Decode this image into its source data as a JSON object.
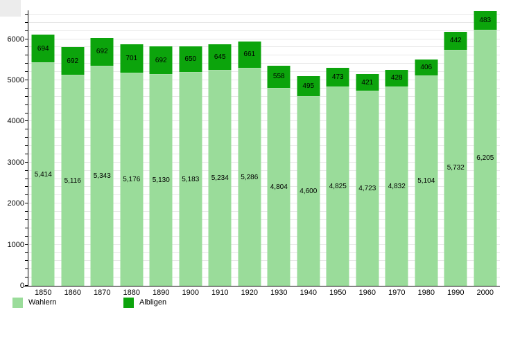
{
  "chart_data": {
    "type": "bar",
    "stacked": true,
    "title": "",
    "xlabel": "",
    "ylabel": "",
    "categories": [
      "1850",
      "1860",
      "1870",
      "1880",
      "1890",
      "1900",
      "1910",
      "1920",
      "1930",
      "1940",
      "1950",
      "1960",
      "1970",
      "1980",
      "1990",
      "2000"
    ],
    "series": [
      {
        "name": "Wahlern",
        "color": "#9adc9a",
        "values": [
          5414,
          5116,
          5343,
          5176,
          5130,
          5183,
          5234,
          5286,
          4804,
          4600,
          4825,
          4723,
          4832,
          5104,
          5732,
          6205
        ],
        "labels": [
          "5,414",
          "5,116",
          "5,343",
          "5,176",
          "5,130",
          "5,183",
          "5,234",
          "5,286",
          "4,804",
          "4,600",
          "4,825",
          "4,723",
          "4,832",
          "5,104",
          "5,732",
          "6,205"
        ]
      },
      {
        "name": "Albligen",
        "color": "#0ca40c",
        "values": [
          694,
          692,
          692,
          701,
          692,
          650,
          645,
          661,
          558,
          495,
          473,
          421,
          428,
          406,
          442,
          483
        ],
        "labels": [
          "694",
          "692",
          "692",
          "701",
          "692",
          "650",
          "645",
          "661",
          "558",
          "495",
          "473",
          "421",
          "428",
          "406",
          "442",
          "483"
        ]
      }
    ],
    "ylim": [
      0,
      6700
    ],
    "y_major_ticks": [
      0,
      1000,
      2000,
      3000,
      4000,
      5000,
      6000
    ],
    "grid_interval": 200,
    "grid": true,
    "legend_position": "bottom"
  },
  "colors": {
    "grid": "#e7e7e7",
    "axis": "#000000",
    "background": "#ffffff",
    "corner_box": "#ececec"
  }
}
